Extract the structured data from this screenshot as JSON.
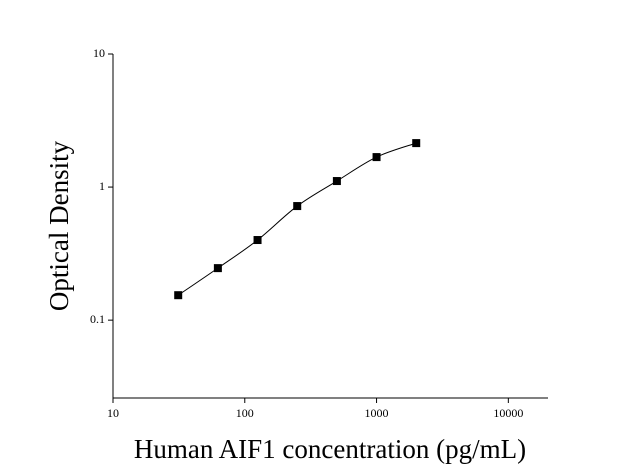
{
  "chart_data": {
    "type": "scatter",
    "x_label": "Human AIF1 concentration (pg/mL)",
    "y_label": "Optical Density",
    "x": [
      31.25,
      62.5,
      125,
      250,
      500,
      1000,
      2000
    ],
    "values": [
      0.154,
      0.246,
      0.4,
      0.72,
      1.11,
      1.68,
      2.14
    ],
    "color": "#000000",
    "x_log": true,
    "y_log": true,
    "fit_curve": true,
    "xlim": [
      10,
      20000
    ],
    "ylim": [
      0.026,
      10
    ],
    "xticks": [
      10,
      100,
      1000,
      10000
    ],
    "yticks": [
      0.1,
      1,
      10
    ]
  }
}
